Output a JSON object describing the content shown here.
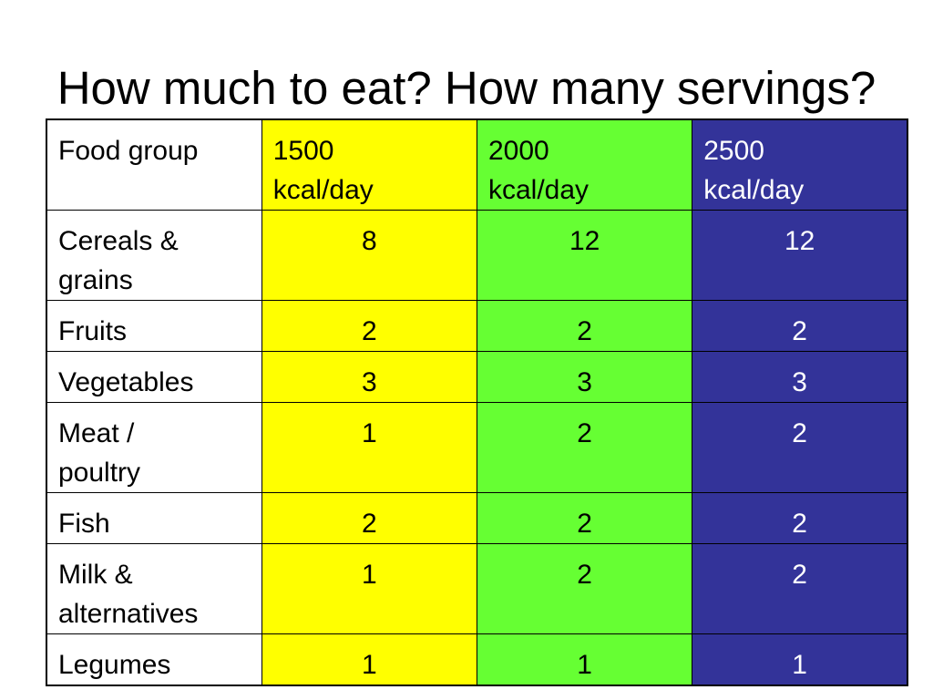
{
  "slide": {
    "title": "How much to eat? How many servings?"
  },
  "colors": {
    "kcal_1500": "#ffff00",
    "kcal_2000": "#66ff33",
    "kcal_2500": "#333399",
    "kcal_2500_text": "#ffffff"
  },
  "table": {
    "headers": [
      [
        "Food group"
      ],
      [
        "1500",
        "kcal/day"
      ],
      [
        "2000",
        "kcal/day"
      ],
      [
        "2500",
        "kcal/day"
      ]
    ],
    "rows": [
      {
        "group": [
          "Cereals &",
          "grains"
        ],
        "values": [
          "8",
          "12",
          "12"
        ]
      },
      {
        "group": [
          "Fruits"
        ],
        "values": [
          "2",
          "2",
          "2"
        ]
      },
      {
        "group": [
          "Vegetables"
        ],
        "values": [
          "3",
          "3",
          "3"
        ]
      },
      {
        "group": [
          "Meat /",
          "poultry"
        ],
        "values": [
          "1",
          "2",
          "2"
        ]
      },
      {
        "group": [
          "Fish"
        ],
        "values": [
          "2",
          "2",
          "2"
        ]
      },
      {
        "group": [
          "Milk &",
          "alternatives"
        ],
        "values": [
          "1",
          "2",
          "2"
        ]
      },
      {
        "group": [
          "Legumes"
        ],
        "values": [
          "1",
          "1",
          "1"
        ]
      }
    ]
  }
}
